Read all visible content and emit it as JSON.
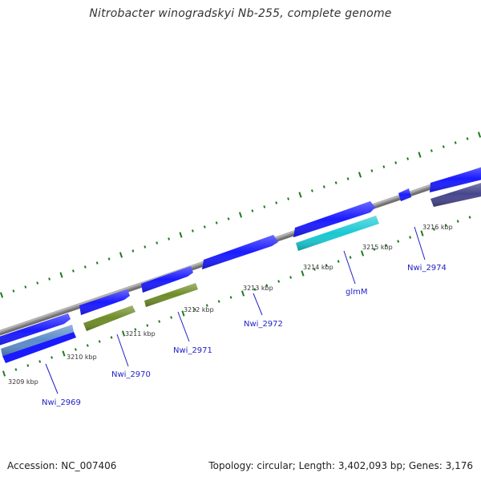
{
  "title": "Nitrobacter winogradskyi Nb-255, complete genome",
  "footer": {
    "accession": "Accession: NC_007406",
    "info": "Topology: circular; Length: 3,402,093 bp; Genes: 3,176"
  },
  "colors": {
    "backbone": "#8c8c8c",
    "cds_blue": "#1a1aff",
    "cds_green": "#6e8c28",
    "cds_cyan": "#19c8d2",
    "cds_purple": "#46468c",
    "cds_steel": "#5a8cc8",
    "ticks": "#1e7a1e",
    "gene_label": "#1e1ec8"
  },
  "ruler": {
    "labels": [
      "3209 kbp",
      "3210 kbp",
      "3211 kbp",
      "3212 kbp",
      "3213 kbp",
      "3214 kbp",
      "3215 kbp",
      "3216 kbp"
    ]
  },
  "genes": {
    "labels": [
      "Nwi_2969",
      "Nwi_2970",
      "Nwi_2971",
      "Nwi_2972",
      "glmM",
      "Nwi_2974"
    ]
  }
}
